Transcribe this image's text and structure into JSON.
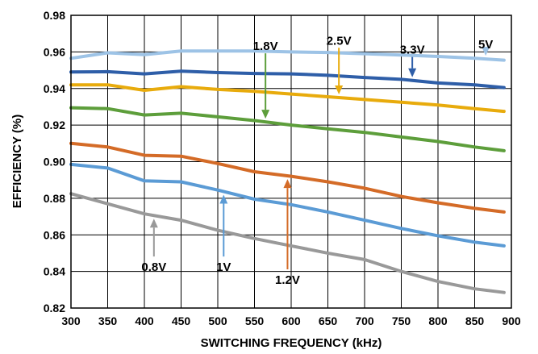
{
  "chart_data": {
    "type": "line",
    "xlabel": "SWITCHING FREQUENCY (kHz)",
    "ylabel": "EFFICIENCY (%)",
    "xlim": [
      300,
      900
    ],
    "ylim": [
      0.82,
      0.98
    ],
    "xticks": [
      "300",
      "350",
      "400",
      "450",
      "500",
      "550",
      "600",
      "650",
      "700",
      "750",
      "800",
      "850",
      "900"
    ],
    "yticks": [
      "0.82",
      "0.84",
      "0.86",
      "0.88",
      "0.90",
      "0.92",
      "0.94",
      "0.96",
      "0.98"
    ],
    "grid": true,
    "legend": "none",
    "x": [
      300,
      350,
      400,
      450,
      500,
      550,
      600,
      650,
      700,
      750,
      800,
      850,
      890
    ],
    "series": [
      {
        "name": "5V",
        "color": "#9dc3e6",
        "values": [
          0.9565,
          0.9595,
          0.9585,
          0.9605,
          0.9605,
          0.9605,
          0.96,
          0.9597,
          0.959,
          0.9583,
          0.9575,
          0.9565,
          0.9555
        ]
      },
      {
        "name": "3.3V",
        "color": "#2e5ea8",
        "values": [
          0.949,
          0.9492,
          0.948,
          0.9495,
          0.9487,
          0.9482,
          0.948,
          0.9472,
          0.946,
          0.945,
          0.943,
          0.942,
          0.9405
        ]
      },
      {
        "name": "2.5V",
        "color": "#e8ab0c",
        "values": [
          0.942,
          0.942,
          0.939,
          0.941,
          0.9395,
          0.9385,
          0.937,
          0.9355,
          0.934,
          0.9325,
          0.931,
          0.929,
          0.9275
        ]
      },
      {
        "name": "1.8V",
        "color": "#5d9e3b",
        "values": [
          0.9295,
          0.929,
          0.9255,
          0.9265,
          0.9245,
          0.9225,
          0.92,
          0.918,
          0.916,
          0.9135,
          0.911,
          0.908,
          0.906
        ]
      },
      {
        "name": "1.2V",
        "color": "#d46b27",
        "values": [
          0.91,
          0.908,
          0.9035,
          0.903,
          0.899,
          0.8945,
          0.892,
          0.889,
          0.8855,
          0.881,
          0.8775,
          0.8745,
          0.8725
        ]
      },
      {
        "name": "1V",
        "color": "#5b9bd5",
        "values": [
          0.8985,
          0.8965,
          0.8895,
          0.889,
          0.8845,
          0.8795,
          0.8765,
          0.8725,
          0.868,
          0.8635,
          0.8595,
          0.856,
          0.854
        ]
      },
      {
        "name": "0.8V",
        "color": "#999999",
        "values": [
          0.8825,
          0.877,
          0.8715,
          0.868,
          0.8625,
          0.858,
          0.854,
          0.85,
          0.8465,
          0.84,
          0.8345,
          0.8305,
          0.8285
        ]
      }
    ],
    "annotations": [
      {
        "text": "5V",
        "series": "5V",
        "x_from": 865,
        "y_from": 0.962
      },
      {
        "text": "3.3V",
        "series": "3.3V",
        "x_from": 765,
        "y_from": 0.959
      },
      {
        "text": "2.5V",
        "series": "2.5V",
        "x_from": 665,
        "y_from": 0.964
      },
      {
        "text": "1.8V",
        "series": "1.8V",
        "x_from": 565,
        "y_from": 0.961
      },
      {
        "text": "1.2V",
        "series": "1.2V",
        "x_from": 595,
        "y_from": 0.835
      },
      {
        "text": "1V",
        "series": "1V",
        "x_from": 508,
        "y_from": 0.842
      },
      {
        "text": "0.8V",
        "series": "0.8V",
        "x_from": 413,
        "y_from": 0.842
      }
    ]
  }
}
